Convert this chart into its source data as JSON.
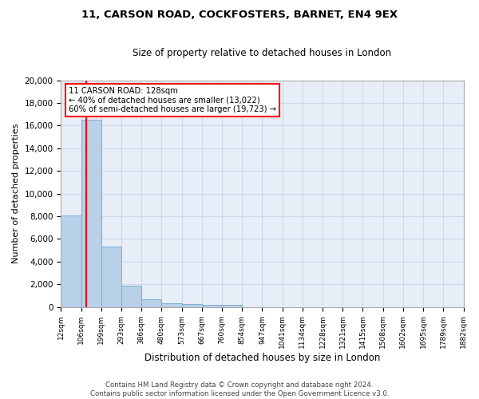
{
  "title_line1": "11, CARSON ROAD, COCKFOSTERS, BARNET, EN4 9EX",
  "title_line2": "Size of property relative to detached houses in London",
  "xlabel": "Distribution of detached houses by size in London",
  "ylabel": "Number of detached properties",
  "annotation_title": "11 CARSON ROAD: 128sqm",
  "annotation_line2": "← 40% of detached houses are smaller (13,022)",
  "annotation_line3": "60% of semi-detached houses are larger (19,723) →",
  "footer_line1": "Contains HM Land Registry data © Crown copyright and database right 2024.",
  "footer_line2": "Contains public sector information licensed under the Open Government Licence v3.0.",
  "property_size": 128,
  "bin_labels": [
    "12sqm",
    "106sqm",
    "199sqm",
    "293sqm",
    "386sqm",
    "480sqm",
    "573sqm",
    "667sqm",
    "760sqm",
    "854sqm",
    "947sqm",
    "1041sqm",
    "1134sqm",
    "1228sqm",
    "1321sqm",
    "1415sqm",
    "1508sqm",
    "1602sqm",
    "1695sqm",
    "1789sqm",
    "1882sqm"
  ],
  "bar_heights": [
    8100,
    16500,
    5300,
    1850,
    650,
    330,
    265,
    215,
    175,
    0,
    0,
    0,
    0,
    0,
    0,
    0,
    0,
    0,
    0,
    0
  ],
  "bar_color": "#b8d0e8",
  "bar_edge_color": "#7aafd4",
  "vline_color": "red",
  "grid_color": "#d0d8e8",
  "background_color": "#e8eef8",
  "ylim": [
    0,
    20000
  ],
  "yticks": [
    0,
    2000,
    4000,
    6000,
    8000,
    10000,
    12000,
    14000,
    16000,
    18000,
    20000
  ]
}
